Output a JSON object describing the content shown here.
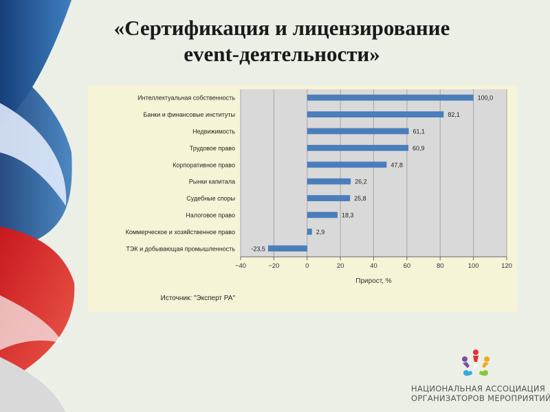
{
  "slide": {
    "title_line1": "«Сертификация и лицензирование",
    "title_line2": "event-деятельности»"
  },
  "footer": {
    "org_line1": "НАЦИОНАЛЬНАЯ АССОЦИАЦИЯ",
    "org_line2": "ОРГАНИЗАТОРОВ МЕРОПРИЯТИЙ"
  },
  "colors": {
    "bar": "#4a7ebb",
    "plot_background": "#d9d9d9",
    "panel_background": "#f5f4d7",
    "grid": "#a6a6a6"
  },
  "chart_data": {
    "type": "bar",
    "orientation": "horizontal",
    "categories": [
      "Интеллектуальная собственность",
      "Банки и финансовые институты",
      "Недвижимость",
      "Трудовое право",
      "Корпоративное право",
      "Рынки капитала",
      "Судебные споры",
      "Налоговое право",
      "Коммерческое и хозяйственное право",
      "ТЭК и добывающая промышленность"
    ],
    "values": [
      100.0,
      82.1,
      61.1,
      60.9,
      47.8,
      26.2,
      25.8,
      18.3,
      2.9,
      -23.5
    ],
    "value_labels": [
      "100,0",
      "82,1",
      "61,1",
      "60,9",
      "47,8",
      "26,2",
      "25,8",
      "18,3",
      "2,9",
      "-23,5"
    ],
    "xlabel": "Прирост, %",
    "xlim": [
      -40,
      120
    ],
    "xticks": [
      -40,
      -20,
      0,
      20,
      40,
      60,
      80,
      100,
      120
    ],
    "grid": true,
    "source_note": "Источник: \"Эксперт РА\""
  }
}
